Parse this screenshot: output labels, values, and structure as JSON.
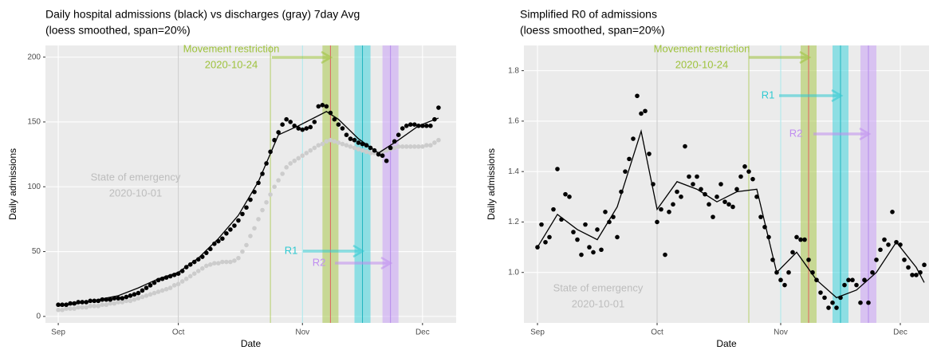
{
  "chart_data": [
    {
      "type": "scatter",
      "title": "Daily hospital admissions (black) vs discharges (gray) 7day Avg",
      "subtitle": "(loess smoothed, span=20%)",
      "x_label": "Date",
      "y_label": "Daily admissions",
      "xlim": [
        -3.2,
        99.4
      ],
      "ylim": [
        -5,
        209
      ],
      "xticks": [
        {
          "value": 0,
          "label": "Sep"
        },
        {
          "value": 30,
          "label": "Oct"
        },
        {
          "value": 61,
          "label": "Nov"
        },
        {
          "value": 91,
          "label": "Dec"
        }
      ],
      "yticks": [
        0,
        50,
        100,
        150,
        200
      ],
      "grid": true,
      "background": "#ebebeb",
      "x": [
        0,
        1,
        2,
        3,
        4,
        5,
        6,
        7,
        8,
        9,
        10,
        11,
        12,
        13,
        14,
        15,
        16,
        17,
        18,
        19,
        20,
        21,
        22,
        23,
        24,
        25,
        26,
        27,
        28,
        29,
        30,
        31,
        32,
        33,
        34,
        35,
        36,
        37,
        38,
        39,
        40,
        41,
        42,
        43,
        44,
        45,
        46,
        47,
        48,
        49,
        50,
        51,
        52,
        53,
        54,
        55,
        56,
        57,
        58,
        59,
        60,
        61,
        62,
        63,
        64,
        65,
        66,
        67,
        68,
        69,
        70,
        71,
        72,
        73,
        74,
        75,
        76,
        77,
        78,
        79,
        80,
        81,
        82,
        83,
        84,
        85,
        86,
        87,
        88,
        89,
        90,
        91,
        92,
        93,
        94,
        95
      ],
      "series": [
        {
          "mode": "markers",
          "color": "#cccccc",
          "values": [
            5,
            5,
            6,
            6,
            6,
            7,
            7,
            7,
            8,
            8,
            8,
            9,
            9,
            10,
            10,
            11,
            11,
            12,
            12,
            13,
            14,
            15,
            16,
            17,
            18,
            19,
            20,
            21,
            22,
            24,
            25,
            27,
            29,
            31,
            33,
            35,
            37,
            39,
            40,
            41,
            41,
            42,
            42,
            42,
            43,
            45,
            50,
            55,
            62,
            68,
            75,
            82,
            88,
            94,
            100,
            105,
            110,
            115,
            118,
            120,
            122,
            124,
            126,
            128,
            130,
            132,
            133,
            135,
            136,
            135,
            134,
            133,
            132,
            131,
            130,
            129,
            128,
            127,
            126,
            126,
            126,
            127,
            128,
            129,
            130,
            131,
            131,
            131,
            131,
            131,
            131,
            131,
            132,
            132,
            134,
            136
          ]
        },
        {
          "mode": "markers",
          "color": "#000000",
          "values": [
            9,
            9,
            9,
            10,
            10,
            11,
            11,
            11,
            12,
            12,
            12,
            13,
            13,
            13,
            14,
            14,
            14,
            15,
            16,
            17,
            18,
            20,
            22,
            24,
            26,
            28,
            29,
            30,
            31,
            32,
            33,
            35,
            38,
            40,
            42,
            44,
            46,
            49,
            52,
            56,
            58,
            60,
            64,
            67,
            70,
            74,
            79,
            84,
            90,
            96,
            103,
            110,
            118,
            127,
            136,
            142,
            148,
            152,
            150,
            147,
            145,
            144,
            145,
            146,
            150,
            162,
            163,
            162,
            157,
            152,
            148,
            145,
            140,
            137,
            136,
            134,
            133,
            132,
            130,
            128,
            125,
            124,
            120,
            130,
            135,
            140,
            145,
            147,
            148,
            148,
            147,
            147,
            147,
            147,
            152,
            161
          ]
        },
        {
          "mode": "lines",
          "color": "#000000",
          "x": [
            0,
            5,
            10,
            15,
            20,
            25,
            30,
            35,
            40,
            45,
            50,
            55,
            60,
            67,
            70,
            75,
            80,
            85,
            90,
            95
          ],
          "values": [
            8,
            10,
            13,
            16,
            22,
            29,
            34,
            45,
            60,
            78,
            104,
            140,
            147,
            158,
            152,
            137,
            126,
            136,
            147,
            153
          ]
        }
      ],
      "vlines": [
        {
          "x": 30,
          "color": "#c8c8c8"
        },
        {
          "x": 53,
          "color": "#b5cf6b"
        },
        {
          "x": 61,
          "color": "#a6e6ea"
        },
        {
          "x": 68,
          "color": "#e06060"
        },
        {
          "x": 76,
          "color": "#1fb5bf"
        },
        {
          "x": 83,
          "color": "#b58aeb"
        }
      ],
      "bands": [
        {
          "x": [
            66,
            70
          ],
          "color": "#a9c94c"
        },
        {
          "x": [
            74,
            78
          ],
          "color": "#3fd3dc"
        },
        {
          "x": [
            81,
            85
          ],
          "color": "#c9a0f5"
        }
      ],
      "annotations": [
        {
          "lines": [
            "Movement restriction",
            "2020-10-24"
          ],
          "color": "#9ec23c"
        },
        {
          "lines": [
            "State of emergency",
            "2020-10-01"
          ],
          "color": "#bdbdbd"
        },
        {
          "lines": [
            "R1"
          ],
          "color": "#2fc9d1"
        },
        {
          "lines": [
            "R2"
          ],
          "color": "#c08ef0"
        }
      ]
    },
    {
      "type": "scatter",
      "title": "Simplified R0 of admissions",
      "subtitle": "(loess smoothed, span=20%)",
      "x_label": "Date",
      "y_label": "Daily admissions",
      "xlim": [
        -3.4,
        98.2
      ],
      "ylim": [
        0.8,
        1.9
      ],
      "xticks": [
        {
          "value": 0,
          "label": "Sep"
        },
        {
          "value": 30,
          "label": "Oct"
        },
        {
          "value": 61,
          "label": "Nov"
        },
        {
          "value": 91,
          "label": "Dec"
        }
      ],
      "yticks": [
        {
          "value": 1,
          "label": "1.0"
        },
        1.2,
        1.4,
        1.6,
        1.8
      ],
      "grid": true,
      "background": "#ebebeb",
      "x": [
        0,
        1,
        2,
        3,
        4,
        5,
        6,
        7,
        8,
        9,
        10,
        11,
        12,
        13,
        14,
        15,
        16,
        17,
        18,
        19,
        20,
        21,
        22,
        23,
        24,
        25,
        26,
        27,
        28,
        29,
        30,
        31,
        32,
        33,
        34,
        35,
        36,
        37,
        38,
        39,
        40,
        41,
        42,
        43,
        44,
        45,
        46,
        47,
        48,
        49,
        50,
        51,
        52,
        53,
        54,
        55,
        56,
        57,
        58,
        59,
        60,
        61,
        62,
        63,
        64,
        65,
        66,
        67,
        68,
        69,
        70,
        71,
        72,
        73,
        74,
        75,
        76,
        77,
        78,
        79,
        80,
        81,
        82,
        83,
        84,
        85,
        86,
        87,
        88,
        89,
        90,
        91,
        92,
        93,
        94,
        95,
        96,
        97
      ],
      "series": [
        {
          "mode": "markers",
          "color": "#000000",
          "values": [
            1.1,
            1.19,
            1.12,
            1.14,
            1.25,
            1.41,
            1.21,
            1.31,
            1.3,
            1.16,
            1.13,
            1.07,
            1.19,
            1.1,
            1.08,
            1.17,
            1.09,
            1.24,
            1.2,
            1.22,
            1.14,
            1.32,
            1.4,
            1.45,
            1.53,
            1.7,
            1.63,
            1.64,
            1.47,
            1.35,
            1.2,
            1.25,
            1.07,
            1.24,
            1.27,
            1.32,
            1.3,
            1.5,
            1.38,
            1.35,
            1.38,
            1.33,
            1.31,
            1.27,
            1.22,
            1.3,
            1.35,
            1.28,
            1.27,
            1.26,
            1.33,
            1.38,
            1.42,
            1.4,
            1.37,
            1.3,
            1.22,
            1.18,
            1.14,
            1.05,
            1.0,
            0.97,
            0.95,
            1.0,
            1.08,
            1.14,
            1.13,
            1.13,
            1.05,
            1.0,
            0.97,
            0.92,
            0.9,
            0.86,
            0.88,
            0.86,
            0.9,
            0.95,
            0.97,
            0.97,
            0.95,
            0.88,
            0.97,
            0.88,
            1.0,
            1.05,
            1.09,
            1.13,
            1.11,
            1.24,
            1.12,
            1.11,
            1.05,
            1.02,
            0.99,
            0.99,
            1.0,
            1.03
          ]
        },
        {
          "mode": "lines",
          "color": "#000000",
          "x": [
            0,
            5,
            10,
            15,
            20,
            26,
            30,
            35,
            40,
            45,
            50,
            55,
            60,
            65,
            70,
            75,
            80,
            85,
            90,
            95,
            97
          ],
          "values": [
            1.1,
            1.23,
            1.17,
            1.13,
            1.26,
            1.56,
            1.25,
            1.36,
            1.33,
            1.28,
            1.32,
            1.33,
            1.0,
            1.08,
            0.97,
            0.9,
            0.93,
            1.0,
            1.12,
            1.02,
            0.96
          ]
        }
      ],
      "vlines": [
        {
          "x": 30,
          "color": "#c8c8c8"
        },
        {
          "x": 53,
          "color": "#b5cf6b"
        },
        {
          "x": 61,
          "color": "#a6e6ea"
        },
        {
          "x": 68,
          "color": "#e06060"
        },
        {
          "x": 76,
          "color": "#1fb5bf"
        },
        {
          "x": 83,
          "color": "#b58aeb"
        }
      ],
      "bands": [
        {
          "x": [
            66,
            70
          ],
          "color": "#a9c94c"
        },
        {
          "x": [
            74,
            78
          ],
          "color": "#3fd3dc"
        },
        {
          "x": [
            81,
            85
          ],
          "color": "#c9a0f5"
        }
      ],
      "annotations": [
        {
          "lines": [
            "Movement restriction",
            "2020-10-24"
          ],
          "color": "#9ec23c"
        },
        {
          "lines": [
            "State of emergency",
            "2020-10-01"
          ],
          "color": "#bdbdbd"
        },
        {
          "lines": [
            "R1"
          ],
          "color": "#2fc9d1"
        },
        {
          "lines": [
            "R2"
          ],
          "color": "#c08ef0"
        }
      ]
    }
  ]
}
